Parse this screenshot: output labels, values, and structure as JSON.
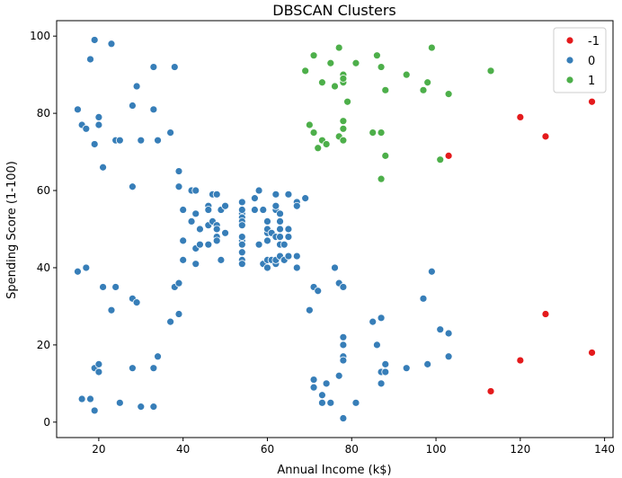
{
  "chart_data": {
    "type": "scatter",
    "title": "DBSCAN Clusters",
    "xlabel": "Annual Income (k$)",
    "ylabel": "Spending Score (1-100)",
    "xlim": [
      10,
      142
    ],
    "ylim": [
      -4,
      104
    ],
    "xticks": [
      20,
      40,
      60,
      80,
      100,
      120,
      140
    ],
    "yticks": [
      0,
      20,
      40,
      60,
      80,
      100
    ],
    "grid": false,
    "legend_position": "top-right",
    "series": [
      {
        "name": "-1",
        "color": "#e41a1c",
        "points": [
          [
            103,
            69
          ],
          [
            113,
            8
          ],
          [
            120,
            79
          ],
          [
            120,
            16
          ],
          [
            126,
            74
          ],
          [
            126,
            28
          ],
          [
            137,
            83
          ],
          [
            137,
            18
          ]
        ]
      },
      {
        "name": "0",
        "color": "#377eb8",
        "points": [
          [
            15,
            39
          ],
          [
            15,
            81
          ],
          [
            16,
            6
          ],
          [
            16,
            77
          ],
          [
            17,
            40
          ],
          [
            17,
            76
          ],
          [
            18,
            6
          ],
          [
            18,
            94
          ],
          [
            19,
            3
          ],
          [
            19,
            72
          ],
          [
            19,
            14
          ],
          [
            19,
            99
          ],
          [
            20,
            15
          ],
          [
            20,
            77
          ],
          [
            20,
            13
          ],
          [
            20,
            79
          ],
          [
            21,
            35
          ],
          [
            21,
            66
          ],
          [
            23,
            29
          ],
          [
            23,
            98
          ],
          [
            24,
            35
          ],
          [
            24,
            73
          ],
          [
            25,
            5
          ],
          [
            25,
            73
          ],
          [
            28,
            14
          ],
          [
            28,
            82
          ],
          [
            28,
            32
          ],
          [
            28,
            61
          ],
          [
            29,
            31
          ],
          [
            29,
            87
          ],
          [
            30,
            4
          ],
          [
            30,
            73
          ],
          [
            33,
            4
          ],
          [
            33,
            92
          ],
          [
            33,
            14
          ],
          [
            33,
            81
          ],
          [
            34,
            17
          ],
          [
            34,
            73
          ],
          [
            37,
            26
          ],
          [
            37,
            75
          ],
          [
            38,
            35
          ],
          [
            38,
            92
          ],
          [
            39,
            36
          ],
          [
            39,
            61
          ],
          [
            39,
            28
          ],
          [
            39,
            65
          ],
          [
            40,
            55
          ],
          [
            40,
            47
          ],
          [
            40,
            42
          ],
          [
            40,
            42
          ],
          [
            42,
            52
          ],
          [
            42,
            60
          ],
          [
            43,
            54
          ],
          [
            43,
            60
          ],
          [
            43,
            45
          ],
          [
            43,
            41
          ],
          [
            44,
            50
          ],
          [
            44,
            46
          ],
          [
            46,
            51
          ],
          [
            46,
            46
          ],
          [
            46,
            56
          ],
          [
            46,
            55
          ],
          [
            47,
            52
          ],
          [
            47,
            59
          ],
          [
            48,
            51
          ],
          [
            48,
            59
          ],
          [
            48,
            50
          ],
          [
            48,
            48
          ],
          [
            48,
            59
          ],
          [
            48,
            47
          ],
          [
            49,
            55
          ],
          [
            49,
            42
          ],
          [
            50,
            49
          ],
          [
            50,
            56
          ],
          [
            54,
            47
          ],
          [
            54,
            54
          ],
          [
            54,
            53
          ],
          [
            54,
            48
          ],
          [
            54,
            52
          ],
          [
            54,
            42
          ],
          [
            54,
            51
          ],
          [
            54,
            55
          ],
          [
            54,
            41
          ],
          [
            54,
            44
          ],
          [
            54,
            57
          ],
          [
            54,
            46
          ],
          [
            57,
            58
          ],
          [
            57,
            55
          ],
          [
            58,
            60
          ],
          [
            58,
            46
          ],
          [
            59,
            55
          ],
          [
            59,
            41
          ],
          [
            60,
            49
          ],
          [
            60,
            40
          ],
          [
            60,
            42
          ],
          [
            60,
            52
          ],
          [
            60,
            47
          ],
          [
            60,
            50
          ],
          [
            61,
            42
          ],
          [
            61,
            49
          ],
          [
            62,
            41
          ],
          [
            62,
            48
          ],
          [
            62,
            59
          ],
          [
            62,
            55
          ],
          [
            62,
            56
          ],
          [
            62,
            42
          ],
          [
            63,
            50
          ],
          [
            63,
            46
          ],
          [
            63,
            43
          ],
          [
            63,
            48
          ],
          [
            63,
            52
          ],
          [
            63,
            54
          ],
          [
            64,
            42
          ],
          [
            64,
            46
          ],
          [
            65,
            48
          ],
          [
            65,
            50
          ],
          [
            65,
            43
          ],
          [
            65,
            59
          ],
          [
            67,
            43
          ],
          [
            67,
            57
          ],
          [
            67,
            56
          ],
          [
            67,
            40
          ],
          [
            69,
            58
          ],
          [
            70,
            29
          ],
          [
            71,
            35
          ],
          [
            71,
            11
          ],
          [
            71,
            9
          ],
          [
            72,
            34
          ],
          [
            73,
            5
          ],
          [
            73,
            7
          ],
          [
            74,
            10
          ],
          [
            75,
            5
          ],
          [
            76,
            40
          ],
          [
            77,
            12
          ],
          [
            77,
            36
          ],
          [
            78,
            22
          ],
          [
            78,
            17
          ],
          [
            78,
            20
          ],
          [
            78,
            16
          ],
          [
            78,
            1
          ],
          [
            78,
            35
          ],
          [
            81,
            5
          ],
          [
            85,
            26
          ],
          [
            86,
            20
          ],
          [
            87,
            27
          ],
          [
            87,
            13
          ],
          [
            87,
            10
          ],
          [
            88,
            13
          ],
          [
            88,
            15
          ],
          [
            93,
            14
          ],
          [
            97,
            32
          ],
          [
            98,
            15
          ],
          [
            99,
            39
          ],
          [
            101,
            24
          ],
          [
            103,
            17
          ],
          [
            103,
            23
          ]
        ]
      },
      {
        "name": "1",
        "color": "#4daf4a",
        "points": [
          [
            69,
            91
          ],
          [
            70,
            77
          ],
          [
            71,
            95
          ],
          [
            71,
            75
          ],
          [
            72,
            71
          ],
          [
            73,
            88
          ],
          [
            73,
            73
          ],
          [
            74,
            72
          ],
          [
            75,
            93
          ],
          [
            76,
            87
          ],
          [
            77,
            97
          ],
          [
            77,
            74
          ],
          [
            78,
            90
          ],
          [
            78,
            88
          ],
          [
            78,
            76
          ],
          [
            78,
            89
          ],
          [
            78,
            78
          ],
          [
            78,
            73
          ],
          [
            79,
            83
          ],
          [
            81,
            93
          ],
          [
            85,
            75
          ],
          [
            86,
            95
          ],
          [
            87,
            63
          ],
          [
            87,
            75
          ],
          [
            87,
            92
          ],
          [
            88,
            86
          ],
          [
            88,
            69
          ],
          [
            93,
            90
          ],
          [
            97,
            86
          ],
          [
            98,
            88
          ],
          [
            99,
            97
          ],
          [
            101,
            68
          ],
          [
            103,
            85
          ],
          [
            113,
            91
          ]
        ]
      }
    ]
  }
}
